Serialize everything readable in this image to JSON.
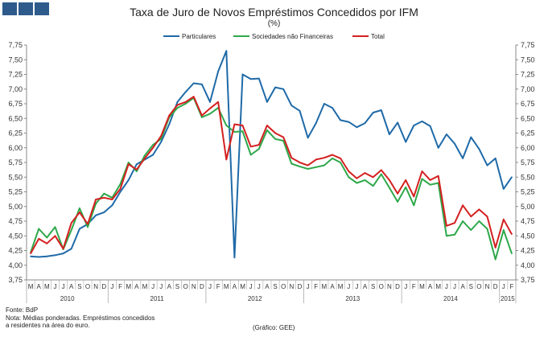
{
  "header": {
    "title": "Taxa de Juro de Novos Empréstimos Concedidos por IFM",
    "subtitle": "(%)"
  },
  "footer": {
    "source": "Fonte: BdP",
    "note_line1": "Nota: Médias ponderadas.  Empréstimos concedidos",
    "note_line2": "a residentes na área do euro.",
    "credit": "(Gráfico: GEE)"
  },
  "colors": {
    "brand": "#2e5b8c",
    "particulares": "#1f6aa8",
    "sociedades": "#2ea84a",
    "total": "#d42020",
    "axis": "#888888"
  },
  "chart_data": {
    "type": "line",
    "title": "Taxa de Juro de Novos Empréstimos Concedidos por IFM",
    "subtitle": "(%)",
    "ylim": [
      3.75,
      7.75
    ],
    "y_ticks": [
      "3,75",
      "4,00",
      "4,25",
      "4,50",
      "4,75",
      "5,00",
      "5,25",
      "5,50",
      "5,75",
      "6,00",
      "6,25",
      "6,50",
      "6,75",
      "7,00",
      "7,25",
      "7,50",
      "7,75"
    ],
    "grid": false,
    "legend_position": "top",
    "x_month_labels": [
      "M",
      "A",
      "M",
      "J",
      "J",
      "A",
      "S",
      "O",
      "N",
      "D",
      "J",
      "F",
      "M",
      "A",
      "M",
      "J",
      "J",
      "A",
      "S",
      "O",
      "N",
      "D",
      "J",
      "F",
      "M",
      "A",
      "M",
      "J",
      "J",
      "A",
      "S",
      "O",
      "N",
      "D",
      "J",
      "F",
      "M",
      "A",
      "M",
      "J",
      "J",
      "A",
      "S",
      "O",
      "N",
      "D",
      "J",
      "F",
      "M",
      "A",
      "M",
      "J",
      "J",
      "A",
      "S",
      "O",
      "N",
      "D",
      "J",
      "F"
    ],
    "years": [
      {
        "label": "2010",
        "start": 0,
        "end": 9
      },
      {
        "label": "2011",
        "start": 10,
        "end": 21
      },
      {
        "label": "2012",
        "start": 22,
        "end": 33
      },
      {
        "label": "2013",
        "start": 34,
        "end": 45
      },
      {
        "label": "2014",
        "start": 46,
        "end": 57
      },
      {
        "label": "2015",
        "start": 58,
        "end": 59
      }
    ],
    "series": [
      {
        "name": "Particulares",
        "color": "#1f6aa8",
        "values": [
          4.15,
          4.14,
          4.15,
          4.17,
          4.2,
          4.28,
          4.62,
          4.7,
          4.85,
          4.9,
          5.02,
          5.25,
          5.45,
          5.72,
          5.8,
          5.88,
          6.1,
          6.4,
          6.78,
          6.95,
          7.1,
          7.08,
          6.78,
          7.3,
          7.65,
          4.13,
          7.25,
          7.17,
          7.18,
          6.78,
          7.03,
          7.0,
          6.72,
          6.63,
          6.17,
          6.42,
          6.75,
          6.68,
          6.47,
          6.44,
          6.35,
          6.42,
          6.6,
          6.64,
          6.23,
          6.43,
          6.1,
          6.38,
          6.45,
          6.37,
          6.0,
          6.23,
          6.07,
          5.82,
          6.18,
          5.98,
          5.7,
          5.82,
          5.3,
          5.5
        ]
      },
      {
        "name": "Sociedades não Financeiras",
        "color": "#2ea84a",
        "values": [
          4.22,
          4.62,
          4.47,
          4.65,
          4.27,
          4.6,
          4.97,
          4.65,
          5.05,
          5.22,
          5.15,
          5.38,
          5.75,
          5.6,
          5.87,
          6.05,
          6.15,
          6.52,
          6.68,
          6.75,
          6.85,
          6.52,
          6.58,
          6.68,
          6.38,
          6.27,
          6.28,
          5.88,
          5.98,
          6.3,
          6.15,
          6.12,
          5.73,
          5.68,
          5.64,
          5.67,
          5.7,
          5.82,
          5.75,
          5.5,
          5.4,
          5.45,
          5.35,
          5.55,
          5.32,
          5.08,
          5.33,
          5.02,
          5.47,
          5.37,
          5.4,
          4.5,
          4.52,
          4.75,
          4.6,
          4.75,
          4.62,
          4.1,
          4.6,
          4.2
        ]
      },
      {
        "name": "Total",
        "color": "#d42020",
        "values": [
          4.2,
          4.45,
          4.37,
          4.5,
          4.28,
          4.72,
          4.9,
          4.7,
          5.12,
          5.15,
          5.12,
          5.3,
          5.72,
          5.63,
          5.82,
          6.0,
          6.2,
          6.55,
          6.73,
          6.78,
          6.87,
          6.55,
          6.67,
          6.78,
          5.8,
          6.4,
          6.38,
          6.02,
          6.05,
          6.38,
          6.25,
          6.18,
          5.83,
          5.75,
          5.7,
          5.8,
          5.83,
          5.88,
          5.82,
          5.6,
          5.48,
          5.57,
          5.5,
          5.62,
          5.45,
          5.22,
          5.45,
          5.17,
          5.6,
          5.45,
          5.52,
          4.67,
          4.72,
          5.02,
          4.83,
          4.95,
          4.83,
          4.3,
          4.78,
          4.53
        ]
      }
    ]
  }
}
